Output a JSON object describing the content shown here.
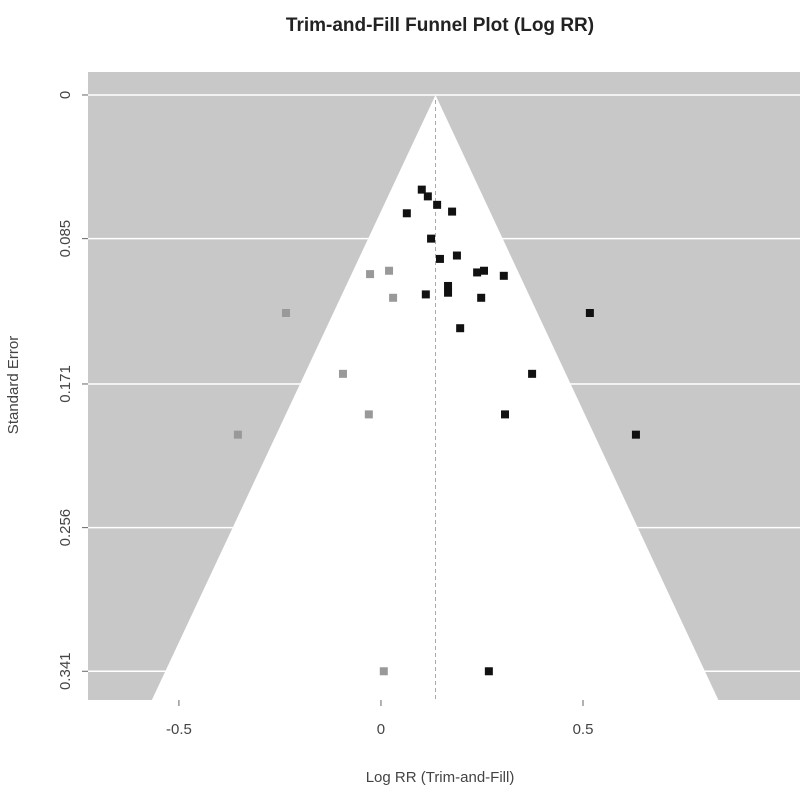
{
  "chart_data": {
    "type": "scatter",
    "title": "Trim-and-Fill Funnel Plot (Log RR)",
    "x_label": "Log RR (Trim-and-Fill)",
    "y_label": "Standard Error",
    "xlim": [
      -0.725,
      1.037
    ],
    "ylim": [
      0.358,
      -0.0136
    ],
    "xticks": [
      -0.5,
      0,
      0.5
    ],
    "yticks": [
      0,
      0.085,
      0.171,
      0.256,
      0.341
    ],
    "grid": true,
    "background": "#c8c8c8",
    "funnel": {
      "color": "#ffffff",
      "x": [
        -0.567,
        0.135,
        0.835
      ],
      "y": [
        0.358,
        0,
        0.358
      ]
    },
    "reference_x": 0.135,
    "series": [
      {
        "color": "#111111",
        "x": [
          0.101,
          0.116,
          0.139,
          0.064,
          0.176,
          0.124,
          0.146,
          0.188,
          0.238,
          0.255,
          0.304,
          0.166,
          0.166,
          0.111,
          0.248,
          0.196,
          0.517,
          0.374,
          0.307,
          0.631,
          0.267
        ],
        "values": [
          0.056,
          0.06,
          0.065,
          0.07,
          0.069,
          0.085,
          0.097,
          0.095,
          0.105,
          0.104,
          0.107,
          0.113,
          0.117,
          0.118,
          0.12,
          0.138,
          0.129,
          0.165,
          0.189,
          0.201,
          0.341
        ]
      },
      {
        "color": "#999999",
        "x": [
          -0.027,
          0.02,
          0.03,
          -0.235,
          -0.094,
          -0.03,
          -0.354,
          0.007
        ],
        "values": [
          0.106,
          0.104,
          0.12,
          0.129,
          0.165,
          0.189,
          0.201,
          0.341
        ]
      }
    ]
  }
}
